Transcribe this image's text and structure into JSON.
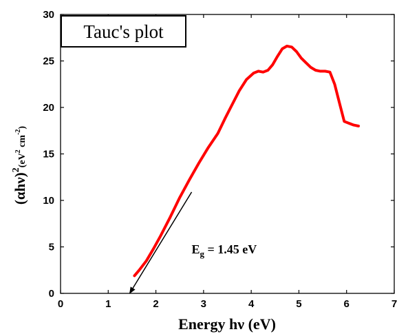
{
  "chart_data": {
    "type": "line",
    "title": "Tauc's plot",
    "xlabel": "Energy hν (eV)",
    "ylabel": {
      "main": "(αhν)",
      "exponent": "2",
      "unit_open": "(",
      "unit_ev": "eV",
      "unit_ev_exp": "2",
      "unit_cm": " cm",
      "unit_cm_exp": "-2",
      "unit_close": ")"
    },
    "xlim": [
      0,
      7
    ],
    "ylim": [
      0,
      30
    ],
    "xticks": [
      0,
      1,
      2,
      3,
      4,
      5,
      6,
      7
    ],
    "yticks": [
      0,
      5,
      10,
      15,
      20,
      25,
      30
    ],
    "grid": false,
    "series": [
      {
        "color": "#ff0000",
        "x": [
          1.55,
          1.65,
          1.8,
          1.95,
          2.1,
          2.3,
          2.5,
          2.7,
          2.9,
          3.1,
          3.3,
          3.45,
          3.6,
          3.75,
          3.9,
          4.05,
          4.15,
          4.25,
          4.35,
          4.45,
          4.55,
          4.65,
          4.75,
          4.85,
          4.95,
          5.05,
          5.15,
          5.25,
          5.35,
          5.45,
          5.55,
          5.65,
          5.75,
          5.85,
          5.95,
          6.05,
          6.15,
          6.25
        ],
        "y": [
          1.9,
          2.5,
          3.5,
          4.8,
          6.2,
          8.2,
          10.3,
          12.2,
          14.0,
          15.7,
          17.2,
          18.8,
          20.3,
          21.8,
          23.0,
          23.7,
          23.9,
          23.8,
          24.0,
          24.6,
          25.5,
          26.3,
          26.6,
          26.5,
          26.0,
          25.3,
          24.8,
          24.3,
          24.0,
          23.9,
          23.9,
          23.8,
          22.5,
          20.5,
          18.5,
          18.3,
          18.1,
          18.0
        ]
      }
    ],
    "fit_line": {
      "color": "#000000",
      "x": [
        1.45,
        2.75
      ],
      "y": [
        0,
        10.9
      ]
    },
    "annotation": {
      "symbol": "E",
      "subscript": "g",
      "value": " = 1.45 eV",
      "x": 2.75,
      "y": 4.3
    }
  }
}
